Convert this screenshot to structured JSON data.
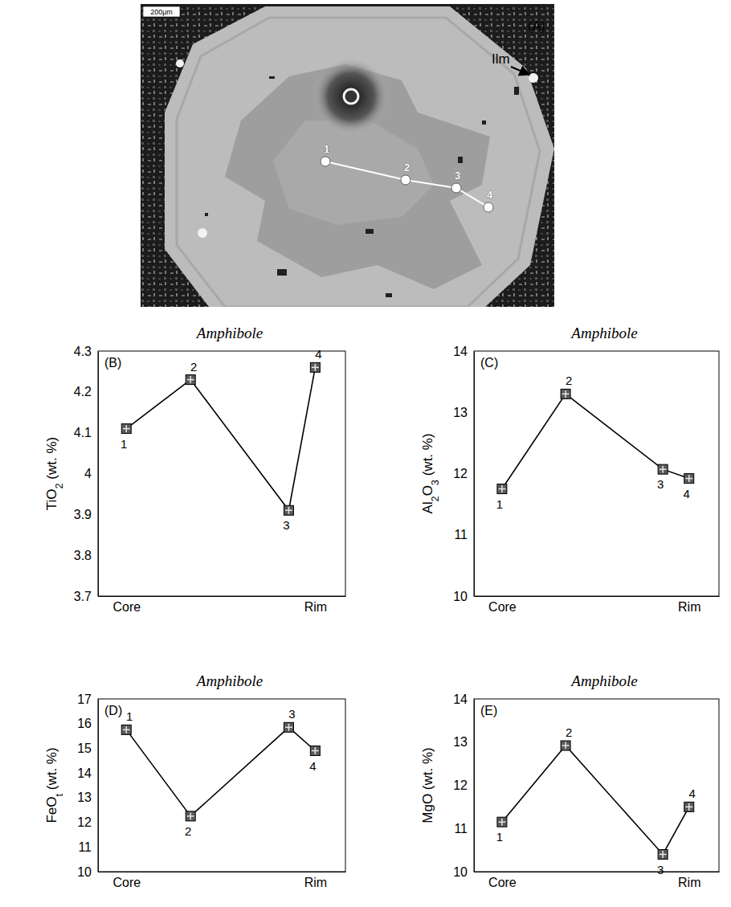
{
  "image": {
    "letter": "(A)",
    "scale_bar": "200μm",
    "mineral_label": "Ilm",
    "points": [
      "1",
      "2",
      "3",
      "4"
    ]
  },
  "chart_data": [
    {
      "type": "line",
      "title": "Amphibole",
      "panel": "(B)",
      "y_label": "TiO2 (wt. %)",
      "x": [
        0,
        0.34,
        0.86,
        1
      ],
      "values": [
        4.11,
        4.23,
        3.91,
        4.26
      ],
      "labels": [
        "1",
        "2",
        "3",
        "4"
      ],
      "xlim": [
        -0.15,
        1.16
      ],
      "xticks": [
        {
          "value": 0,
          "label": "Core"
        },
        {
          "value": 1,
          "label": "Rim"
        }
      ],
      "ylim": [
        3.7,
        4.3
      ],
      "yticks": [
        3.7,
        3.8,
        3.9,
        4,
        4.1,
        4.2,
        4.3
      ],
      "color": "#000000",
      "marker": "square",
      "grid": false
    },
    {
      "type": "line",
      "title": "Amphibole",
      "panel": "(C)",
      "y_label": "Al2O3 (wt. %)",
      "x": [
        0,
        0.34,
        0.86,
        1
      ],
      "values": [
        11.75,
        13.3,
        12.07,
        11.92
      ],
      "labels": [
        "1",
        "2",
        "3",
        "4"
      ],
      "xlim": [
        -0.15,
        1.16
      ],
      "xticks": [
        {
          "value": 0,
          "label": "Core"
        },
        {
          "value": 1,
          "label": "Rim"
        }
      ],
      "ylim": [
        10,
        14
      ],
      "yticks": [
        10,
        11,
        12,
        13,
        14
      ],
      "color": "#000000",
      "marker": "square",
      "grid": false
    },
    {
      "type": "line",
      "title": "Amphibole",
      "panel": "(D)",
      "y_label": "FeOt (wt. %)",
      "x": [
        0,
        0.34,
        0.86,
        1
      ],
      "values": [
        15.75,
        12.25,
        15.85,
        14.9
      ],
      "labels": [
        "1",
        "2",
        "3",
        "4"
      ],
      "xlim": [
        -0.15,
        1.16
      ],
      "xticks": [
        {
          "value": 0,
          "label": "Core"
        },
        {
          "value": 1,
          "label": "Rim"
        }
      ],
      "ylim": [
        10,
        17
      ],
      "yticks": [
        10,
        11,
        12,
        13,
        14,
        15,
        16,
        17
      ],
      "color": "#000000",
      "marker": "square",
      "grid": false
    },
    {
      "type": "line",
      "title": "Amphibole",
      "panel": "(E)",
      "y_label": "MgO (wt. %)",
      "x": [
        0,
        0.34,
        0.86,
        1
      ],
      "values": [
        11.15,
        12.92,
        10.4,
        11.5
      ],
      "labels": [
        "1",
        "2",
        "3",
        "4"
      ],
      "xlim": [
        -0.15,
        1.16
      ],
      "xticks": [
        {
          "value": 0,
          "label": "Core"
        },
        {
          "value": 1,
          "label": "Rim"
        }
      ],
      "ylim": [
        10,
        14
      ],
      "yticks": [
        10,
        11,
        12,
        13,
        14
      ],
      "color": "#000000",
      "marker": "square",
      "grid": false
    }
  ]
}
